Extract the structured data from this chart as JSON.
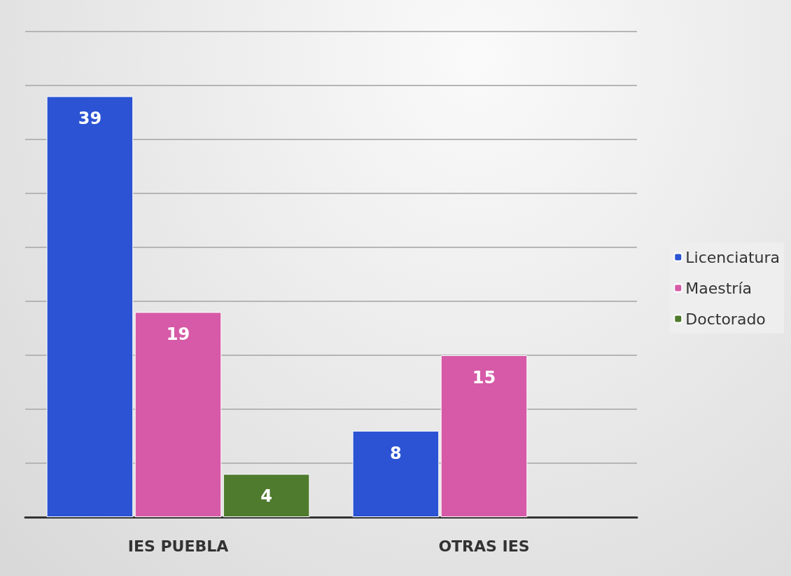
{
  "chart_data": {
    "type": "bar",
    "categories": [
      "IES PUEBLA",
      "OTRAS IES"
    ],
    "series": [
      {
        "name": "Licenciatura",
        "color": "#2b53d3",
        "values": [
          39,
          8
        ]
      },
      {
        "name": "Maestría",
        "color": "#d65aa7",
        "values": [
          19,
          15
        ]
      },
      {
        "name": "Doctorado",
        "color": "#4f7b2f",
        "values": [
          4,
          null
        ]
      }
    ],
    "ylim": [
      0,
      45
    ],
    "yticks": [
      {
        "value": 0,
        "label": null
      },
      {
        "value": 5,
        "label": null
      },
      {
        "value": 10,
        "label": null
      },
      {
        "value": 15,
        "label": null
      },
      {
        "value": 20,
        "label": null
      },
      {
        "value": 25,
        "label": null
      },
      {
        "value": 30,
        "label": null
      },
      {
        "value": 35,
        "label": null
      },
      {
        "value": 40,
        "label": null
      },
      {
        "value": 45,
        "label": null
      }
    ],
    "grid": "y",
    "legend": "right",
    "tick_labels": "x",
    "data_labels": true
  }
}
